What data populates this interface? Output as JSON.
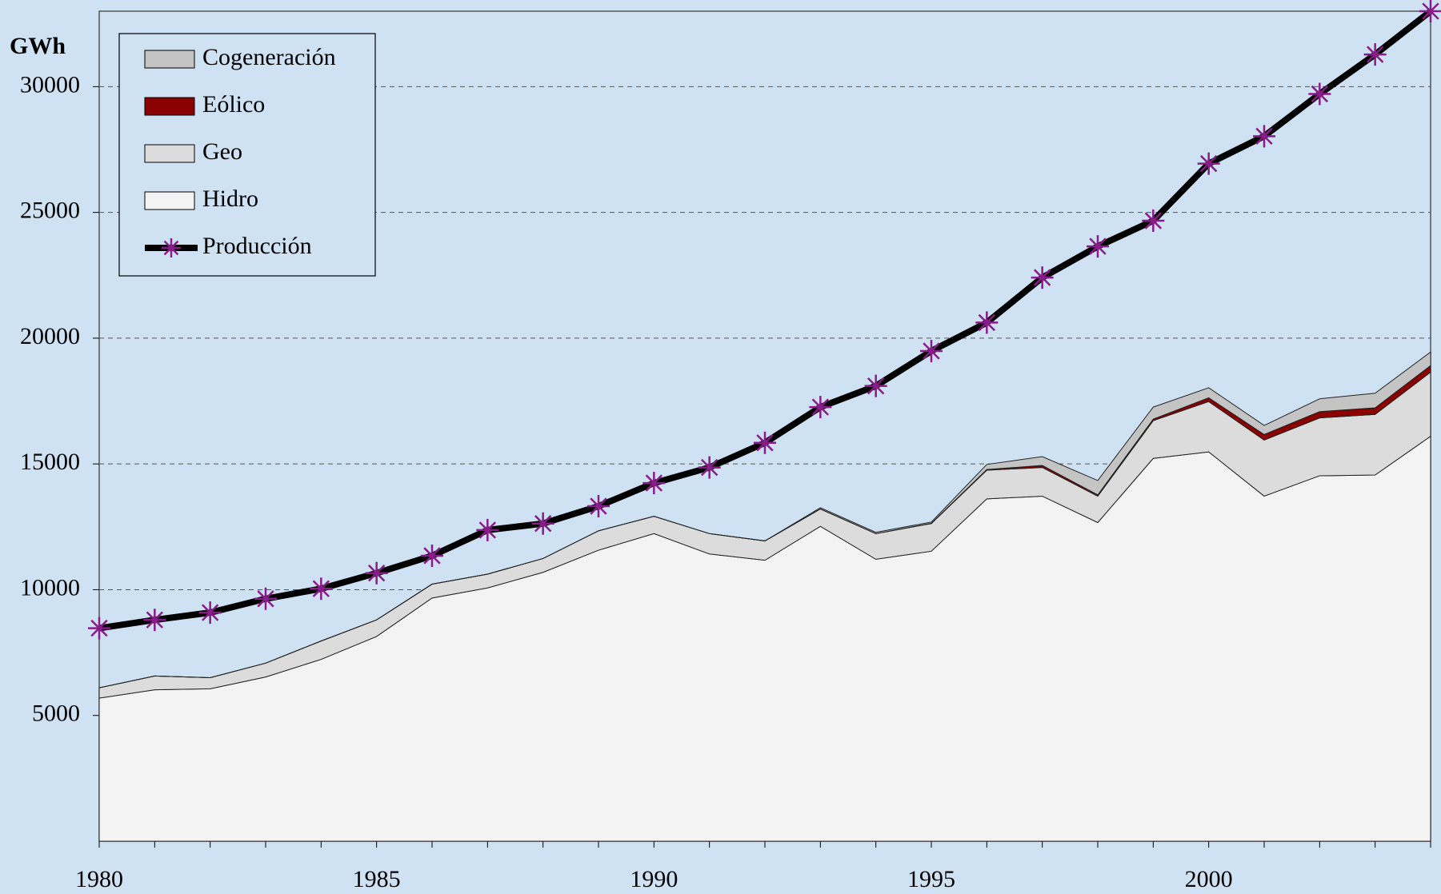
{
  "chart_data": {
    "type": "stacked-area-line",
    "y_label": "GWh",
    "x": [
      1980,
      1981,
      1982,
      1983,
      1984,
      1985,
      1986,
      1987,
      1988,
      1989,
      1990,
      1991,
      1992,
      1993,
      1994,
      1995,
      1996,
      1997,
      1998,
      1999,
      2000,
      2001,
      2002,
      2003,
      2004
    ],
    "xlim": [
      1980,
      2004
    ],
    "xticks": [
      1980,
      1985,
      1990,
      1995,
      2000
    ],
    "ylim": [
      0,
      33000
    ],
    "yticks": [
      5000,
      10000,
      15000,
      20000,
      25000,
      30000
    ],
    "grid": true,
    "legend": "top-left",
    "series": [
      {
        "name": "Cogeneración",
        "kind": "area",
        "color": "#c4c4c4",
        "values": [
          0,
          0,
          0,
          0,
          0,
          0,
          0,
          0,
          0,
          0,
          0,
          0,
          0,
          50,
          50,
          50,
          200,
          350,
          570,
          480,
          400,
          360,
          510,
          580,
          540
        ]
      },
      {
        "name": "Eólico",
        "kind": "area",
        "color": "#8b0000",
        "values": [
          0,
          0,
          0,
          0,
          0,
          0,
          0,
          0,
          0,
          0,
          0,
          0,
          0,
          0,
          0,
          10,
          30,
          80,
          50,
          60,
          150,
          220,
          250,
          260,
          260
        ]
      },
      {
        "name": "Geo",
        "kind": "area",
        "color": "#dcdcdc",
        "values": [
          410,
          550,
          440,
          550,
          730,
          660,
          550,
          550,
          550,
          770,
          690,
          810,
          770,
          690,
          1020,
          1100,
          1140,
          1140,
          1050,
          1500,
          2000,
          2230,
          2300,
          2410,
          2550
        ]
      },
      {
        "name": "Hidro",
        "kind": "area",
        "color": "#f3f3f3",
        "values": [
          5690,
          6020,
          6060,
          6530,
          7230,
          8140,
          9670,
          10070,
          10690,
          11570,
          12230,
          11420,
          11170,
          12520,
          11210,
          11530,
          13610,
          13720,
          12670,
          15220,
          15480,
          13720,
          14530,
          14560,
          16100
        ]
      },
      {
        "name": "Producción",
        "kind": "line",
        "color": "#000000",
        "marker_color": "#8b1a8b",
        "values": [
          8470,
          8800,
          9090,
          9640,
          10040,
          10660,
          11350,
          12370,
          12630,
          13320,
          14240,
          14860,
          15840,
          17260,
          18100,
          19490,
          20620,
          22410,
          23650,
          24670,
          26940,
          28030,
          29710,
          31280,
          33000
        ]
      }
    ]
  }
}
